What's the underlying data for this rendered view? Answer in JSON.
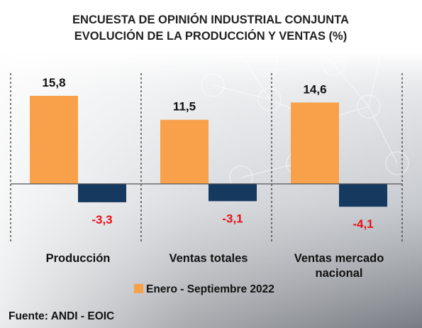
{
  "chart_data": {
    "type": "bar",
    "title_lines": [
      "ENCUESTA DE OPINIÓN INDUSTRIAL CONJUNTA",
      "EVOLUCIÓN DE LA PRODUCCIÓN Y VENTAS (%)"
    ],
    "categories": [
      [
        "Producción"
      ],
      [
        "Ventas totales"
      ],
      [
        "Ventas mercado",
        "nacional"
      ]
    ],
    "series": [
      {
        "name": "Enero - Septiembre 2022",
        "color": "#f9a04a",
        "values": [
          15.8,
          11.5,
          14.6
        ],
        "labels": [
          "15,8",
          "11,5",
          "14,6"
        ]
      },
      {
        "color": "#163a5f",
        "values": [
          -3.3,
          -3.1,
          -4.1
        ],
        "labels": [
          "-3,3",
          "-3,1",
          "-4,1"
        ]
      }
    ],
    "negative_label_color": "#e8101a",
    "legend_position": "bottom",
    "grid": false,
    "ylim": [
      -6.5,
      19
    ],
    "source": "Fuente: ANDI - EOIC"
  }
}
